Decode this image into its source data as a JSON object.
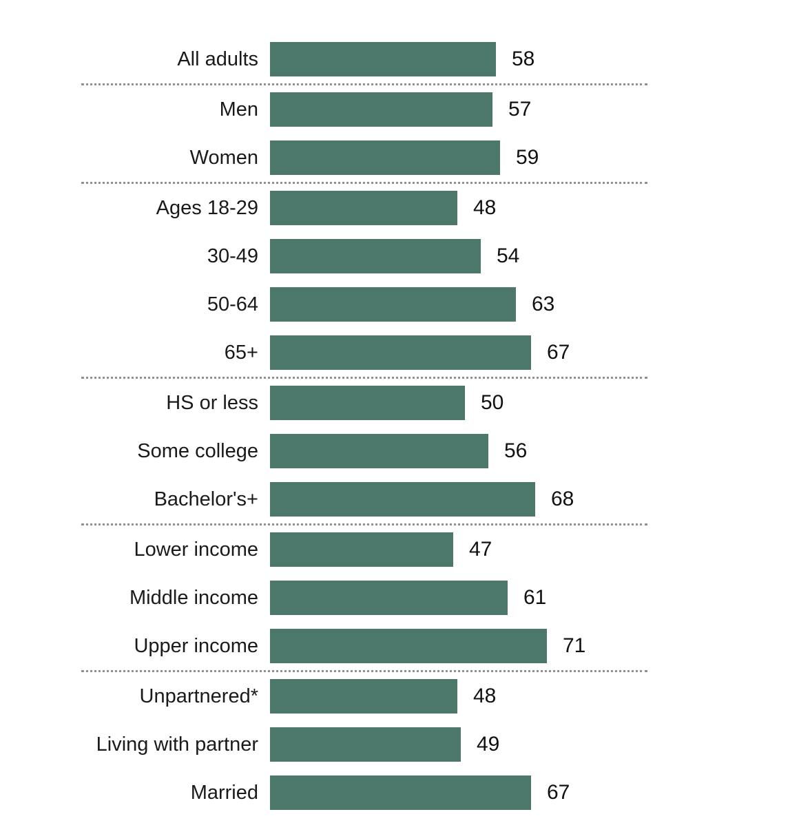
{
  "chart_data": {
    "type": "bar",
    "orientation": "horizontal",
    "title": "",
    "xlabel": "",
    "ylabel": "",
    "xlim": [
      0,
      74
    ],
    "grid": false,
    "legend": false,
    "bar_color": "#4c786b",
    "separator_color": "#8f8f8f",
    "label_color": "#1a1a1a",
    "value_color": "#111111",
    "groups": [
      {
        "name": "overall",
        "rows": [
          {
            "label": "All adults",
            "value": 58
          }
        ]
      },
      {
        "name": "gender",
        "rows": [
          {
            "label": "Men",
            "value": 57
          },
          {
            "label": "Women",
            "value": 59
          }
        ]
      },
      {
        "name": "age",
        "rows": [
          {
            "label": "Ages 18-29",
            "value": 48
          },
          {
            "label": "30-49",
            "value": 54
          },
          {
            "label": "50-64",
            "value": 63
          },
          {
            "label": "65+",
            "value": 67
          }
        ]
      },
      {
        "name": "education",
        "rows": [
          {
            "label": "HS or less",
            "value": 50
          },
          {
            "label": "Some college",
            "value": 56
          },
          {
            "label": "Bachelor's+",
            "value": 68
          }
        ]
      },
      {
        "name": "income",
        "rows": [
          {
            "label": "Lower income",
            "value": 47
          },
          {
            "label": "Middle income",
            "value": 61
          },
          {
            "label": "Upper income",
            "value": 71
          }
        ]
      },
      {
        "name": "partner-status",
        "rows": [
          {
            "label": "Unpartnered*",
            "value": 48
          },
          {
            "label": "Living with partner",
            "value": 49
          },
          {
            "label": "Married",
            "value": 67
          }
        ]
      }
    ]
  }
}
